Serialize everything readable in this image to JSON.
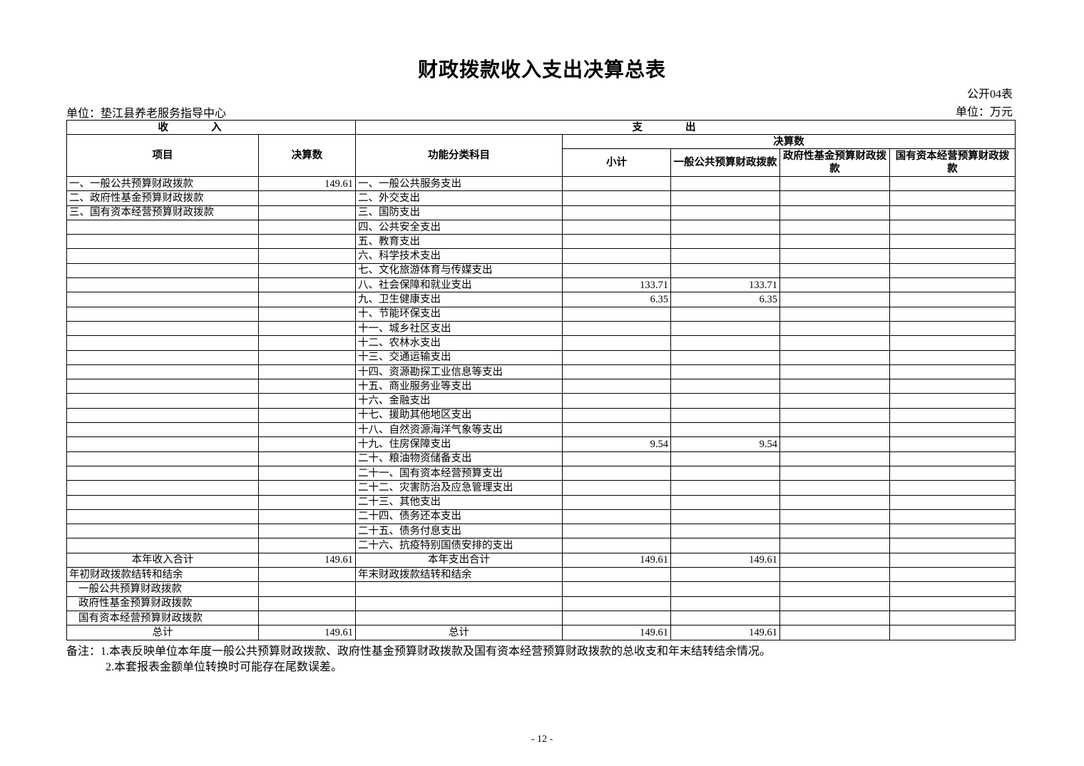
{
  "header": {
    "title": "财政拨款收入支出决算总表",
    "table_no": "公开04表",
    "unit_left": "单位：垫江县养老服务指导中心",
    "unit_right": "单位：万元"
  },
  "table": {
    "head": {
      "income": "收入",
      "expense": "支出",
      "item": "项目",
      "amount": "决算数",
      "func": "功能分类科目",
      "final": "决算数",
      "subtotal": "小计",
      "general": "一般公共预算财政拨款",
      "fund": "政府性基金预算财政拨款",
      "soe": "国有资本经营预算财政拨款"
    },
    "rows": [
      [
        "一、一般公共预算财政拨款",
        "149.61",
        "一、一般公共服务支出",
        null,
        null,
        null,
        null
      ],
      [
        "二、政府性基金预算财政拨款",
        null,
        "二、外交支出",
        null,
        null,
        null,
        null
      ],
      [
        "三、国有资本经营预算财政拨款",
        null,
        "三、国防支出",
        null,
        null,
        null,
        null
      ],
      [
        null,
        null,
        "四、公共安全支出",
        null,
        null,
        null,
        null
      ],
      [
        null,
        null,
        "五、教育支出",
        null,
        null,
        null,
        null
      ],
      [
        null,
        null,
        "六、科学技术支出",
        null,
        null,
        null,
        null
      ],
      [
        null,
        null,
        "七、文化旅游体育与传媒支出",
        null,
        null,
        null,
        null
      ],
      [
        null,
        null,
        "八、社会保障和就业支出",
        "133.71",
        "133.71",
        null,
        null
      ],
      [
        null,
        null,
        "九、卫生健康支出",
        "6.35",
        "6.35",
        null,
        null
      ],
      [
        null,
        null,
        "十、节能环保支出",
        null,
        null,
        null,
        null
      ],
      [
        null,
        null,
        "十一、城乡社区支出",
        null,
        null,
        null,
        null
      ],
      [
        null,
        null,
        "十二、农林水支出",
        null,
        null,
        null,
        null
      ],
      [
        null,
        null,
        "十三、交通运输支出",
        null,
        null,
        null,
        null
      ],
      [
        null,
        null,
        "十四、资源勘探工业信息等支出",
        null,
        null,
        null,
        null
      ],
      [
        null,
        null,
        "十五、商业服务业等支出",
        null,
        null,
        null,
        null
      ],
      [
        null,
        null,
        "十六、金融支出",
        null,
        null,
        null,
        null
      ],
      [
        null,
        null,
        "十七、援助其他地区支出",
        null,
        null,
        null,
        null
      ],
      [
        null,
        null,
        "十八、自然资源海洋气象等支出",
        null,
        null,
        null,
        null
      ],
      [
        null,
        null,
        "十九、住房保障支出",
        "9.54",
        "9.54",
        null,
        null
      ],
      [
        null,
        null,
        "二十、粮油物资储备支出",
        null,
        null,
        null,
        null
      ],
      [
        null,
        null,
        "二十一、国有资本经营预算支出",
        null,
        null,
        null,
        null
      ],
      [
        null,
        null,
        "二十二、灾害防治及应急管理支出",
        null,
        null,
        null,
        null
      ],
      [
        null,
        null,
        "二十三、其他支出",
        null,
        null,
        null,
        null
      ],
      [
        null,
        null,
        "二十四、债务还本支出",
        null,
        null,
        null,
        null
      ],
      [
        null,
        null,
        "二十五、债务付息支出",
        null,
        null,
        null,
        null
      ],
      [
        null,
        null,
        "二十六、抗疫特别国债安排的支出",
        null,
        null,
        null,
        null
      ],
      [
        "本年收入合计",
        "149.61",
        "本年支出合计",
        "149.61",
        "149.61",
        null,
        null
      ],
      [
        "年初财政拨款结转和结余",
        null,
        "年末财政拨款结转和结余",
        null,
        null,
        null,
        null
      ],
      [
        "一般公共预算财政拨款",
        null,
        null,
        null,
        null,
        null,
        null
      ],
      [
        "政府性基金预算财政拨款",
        null,
        null,
        null,
        null,
        null,
        null
      ],
      [
        "国有资本经营预算财政拨款",
        null,
        null,
        null,
        null,
        null,
        null
      ],
      [
        "总计",
        "149.61",
        "总计",
        "149.61",
        "149.61",
        null,
        null
      ]
    ]
  },
  "notes": [
    "备注：1.本表反映单位本年度一般公共预算财政拨款、政府性基金预算财政拨款及国有资本经营预算财政拨款的总收支和年末结转结余情况。",
    "2.本套报表金额单位转换时可能存在尾数误差。"
  ],
  "page_number": "- 12 -"
}
